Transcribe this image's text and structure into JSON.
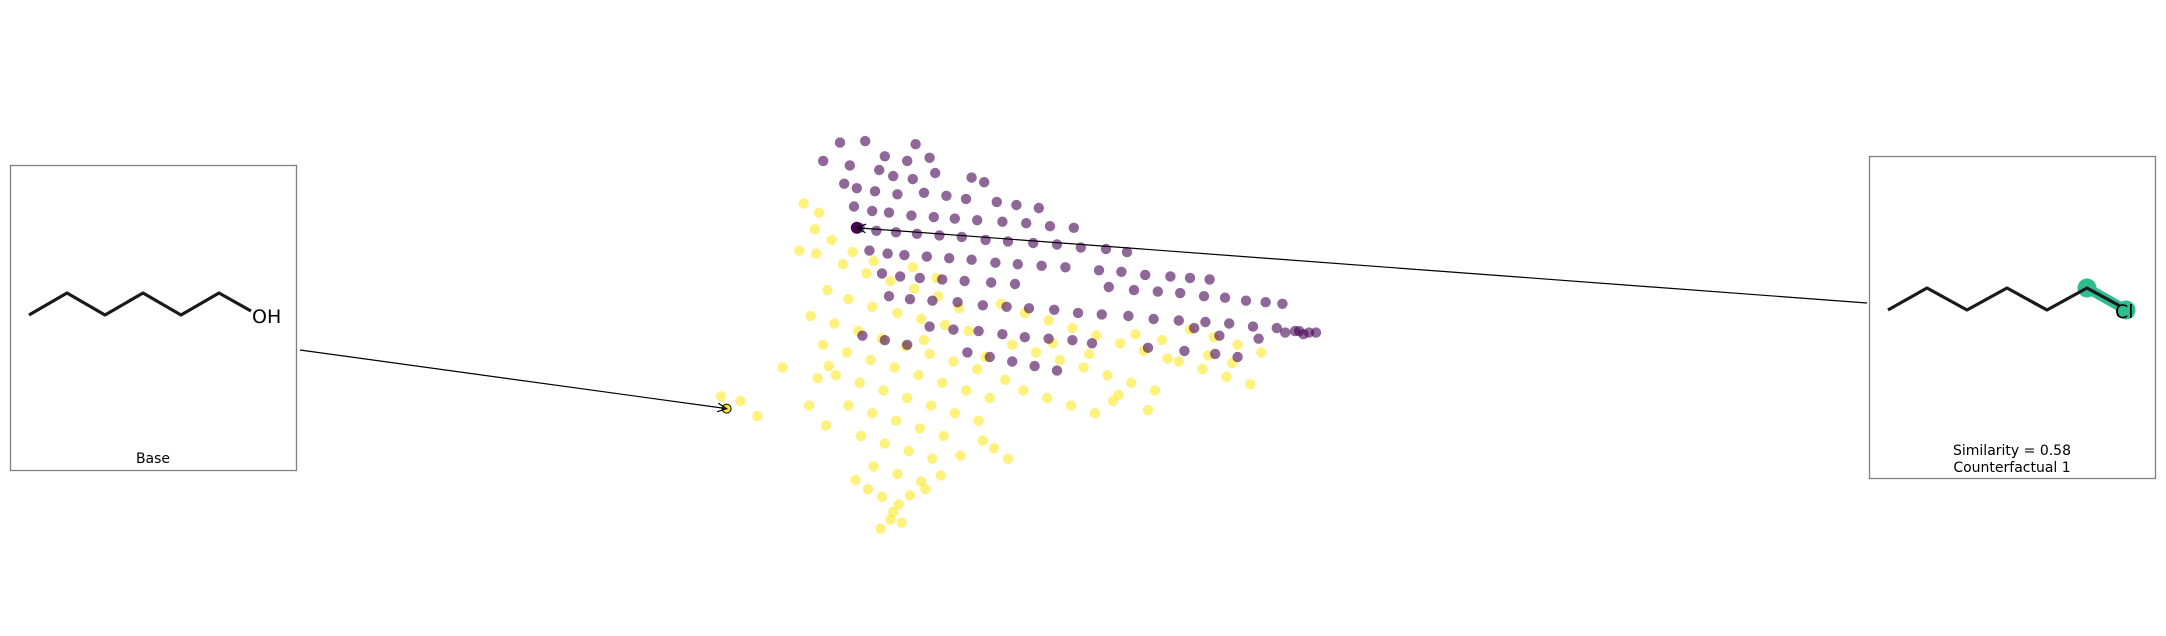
{
  "chart_data": {
    "type": "scatter",
    "title": "",
    "xlabel": "",
    "ylabel": "",
    "grid": false,
    "axes_visible": false,
    "color_map": {
      "0": "#440154",
      "1": "#fde725"
    },
    "point_alpha": 0.6,
    "base": {
      "caption": "Base",
      "smiles_drawn": "CCCCCCO",
      "hetero_label": "OH",
      "point": [
        -8.1,
        -5.7
      ],
      "point_color": "#fde725"
    },
    "counterfactuals": [
      {
        "caption_similarity": "Similarity = 0.58",
        "caption_name": "Counterfactual 1",
        "smiles_drawn": "CCCCCCCl",
        "hetero_label": "Cl",
        "highlight_color": "#2ebd8f",
        "point": [
          1.2,
          6.2
        ],
        "point_color": "#440154"
      }
    ],
    "series": [
      {
        "name": "0",
        "color": "#440154",
        "points": [
          [
            0.0,
            11.8
          ],
          [
            1.8,
            11.9
          ],
          [
            5.4,
            11.7
          ],
          [
            -1.2,
            10.6
          ],
          [
            0.7,
            10.3
          ],
          [
            3.2,
            10.9
          ],
          [
            4.8,
            10.6
          ],
          [
            6.4,
            10.8
          ],
          [
            2.8,
            10.0
          ],
          [
            3.8,
            9.6
          ],
          [
            5.2,
            9.4
          ],
          [
            6.8,
            9.8
          ],
          [
            9.4,
            9.5
          ],
          [
            10.3,
            9.2
          ],
          [
            0.3,
            9.1
          ],
          [
            1.2,
            8.8
          ],
          [
            2.5,
            8.6
          ],
          [
            4.1,
            8.4
          ],
          [
            6.0,
            8.5
          ],
          [
            7.6,
            8.3
          ],
          [
            9.0,
            8.1
          ],
          [
            11.2,
            7.9
          ],
          [
            12.6,
            7.7
          ],
          [
            14.2,
            7.5
          ],
          [
            1.0,
            7.6
          ],
          [
            2.3,
            7.3
          ],
          [
            3.5,
            7.2
          ],
          [
            5.1,
            7.0
          ],
          [
            6.7,
            6.9
          ],
          [
            8.2,
            6.8
          ],
          [
            9.8,
            6.7
          ],
          [
            11.6,
            6.6
          ],
          [
            13.3,
            6.5
          ],
          [
            15.0,
            6.3
          ],
          [
            16.7,
            6.2
          ],
          [
            1.4,
            6.2
          ],
          [
            2.6,
            6.0
          ],
          [
            4.0,
            5.9
          ],
          [
            5.5,
            5.8
          ],
          [
            7.1,
            5.7
          ],
          [
            8.7,
            5.6
          ],
          [
            10.4,
            5.4
          ],
          [
            12.0,
            5.3
          ],
          [
            13.8,
            5.2
          ],
          [
            15.5,
            5.1
          ],
          [
            17.2,
            4.9
          ],
          [
            19.0,
            4.8
          ],
          [
            20.5,
            4.6
          ],
          [
            2.1,
            4.7
          ],
          [
            3.4,
            4.5
          ],
          [
            4.6,
            4.4
          ],
          [
            6.2,
            4.3
          ],
          [
            7.8,
            4.2
          ],
          [
            9.4,
            4.1
          ],
          [
            11.1,
            3.9
          ],
          [
            12.7,
            3.8
          ],
          [
            14.4,
            3.7
          ],
          [
            16.1,
            3.6
          ],
          [
            18.5,
            3.4
          ],
          [
            20.1,
            3.3
          ],
          [
            21.8,
            3.1
          ],
          [
            23.6,
            3.0
          ],
          [
            25.0,
            2.9
          ],
          [
            26.4,
            2.8
          ],
          [
            3.0,
            3.2
          ],
          [
            4.3,
            3.0
          ],
          [
            5.7,
            2.9
          ],
          [
            7.3,
            2.8
          ],
          [
            8.9,
            2.7
          ],
          [
            10.8,
            2.6
          ],
          [
            12.5,
            2.5
          ],
          [
            19.2,
            2.3
          ],
          [
            21.0,
            2.1
          ],
          [
            22.7,
            2.0
          ],
          [
            24.3,
            1.9
          ],
          [
            26.0,
            1.7
          ],
          [
            27.5,
            1.6
          ],
          [
            29.0,
            1.4
          ],
          [
            30.4,
            1.3
          ],
          [
            31.6,
            1.2
          ],
          [
            3.5,
            1.7
          ],
          [
            5.0,
            1.5
          ],
          [
            6.6,
            1.4
          ],
          [
            8.4,
            1.3
          ],
          [
            10.2,
            1.1
          ],
          [
            11.9,
            1.0
          ],
          [
            13.5,
            0.9
          ],
          [
            15.3,
            0.8
          ],
          [
            17.0,
            0.6
          ],
          [
            18.7,
            0.5
          ],
          [
            20.6,
            0.4
          ],
          [
            22.4,
            0.2
          ],
          [
            24.2,
            0.1
          ],
          [
            26.1,
            0.0
          ],
          [
            27.8,
            -0.1
          ],
          [
            29.5,
            -0.3
          ],
          [
            31.2,
            -0.4
          ],
          [
            32.8,
            -0.6
          ],
          [
            33.5,
            -0.7
          ],
          [
            34.0,
            -0.7
          ],
          [
            6.4,
            -0.3
          ],
          [
            8.1,
            -0.5
          ],
          [
            9.9,
            -0.6
          ],
          [
            11.6,
            -0.8
          ],
          [
            13.2,
            -1.0
          ],
          [
            14.9,
            -1.1
          ],
          [
            16.6,
            -1.2
          ],
          [
            18.0,
            -1.4
          ],
          [
            22.0,
            -1.7
          ],
          [
            24.6,
            -1.9
          ],
          [
            26.8,
            -2.1
          ],
          [
            28.4,
            -2.3
          ],
          [
            1.6,
            -0.9
          ],
          [
            3.2,
            -1.2
          ],
          [
            4.8,
            -1.5
          ],
          [
            9.1,
            -2.0
          ],
          [
            10.7,
            -2.3
          ],
          [
            12.3,
            -2.6
          ],
          [
            13.9,
            -2.9
          ],
          [
            15.5,
            -3.2
          ],
          [
            31.8,
            -0.7
          ],
          [
            32.5,
            -0.6
          ],
          [
            33.1,
            -0.8
          ],
          [
            25.3,
            -0.4
          ],
          [
            27.1,
            -0.9
          ],
          [
            29.9,
            -1.1
          ]
        ]
      },
      {
        "name": "1",
        "color": "#fde725",
        "points": [
          [
            -2.6,
            7.8
          ],
          [
            -1.5,
            7.2
          ],
          [
            -1.8,
            6.1
          ],
          [
            -0.6,
            5.4
          ],
          [
            0.9,
            4.6
          ],
          [
            2.4,
            4.0
          ],
          [
            -2.9,
            4.7
          ],
          [
            -1.7,
            4.5
          ],
          [
            0.2,
            3.8
          ],
          [
            1.9,
            3.2
          ],
          [
            3.6,
            2.7
          ],
          [
            5.3,
            2.2
          ],
          [
            7.0,
            1.7
          ],
          [
            -0.9,
            2.1
          ],
          [
            0.6,
            1.5
          ],
          [
            2.3,
            1.0
          ],
          [
            4.1,
            0.6
          ],
          [
            5.8,
            0.2
          ],
          [
            7.5,
            -0.2
          ],
          [
            9.2,
            -0.6
          ],
          [
            -2.1,
            0.4
          ],
          [
            -0.4,
            -0.1
          ],
          [
            1.3,
            -0.6
          ],
          [
            3.0,
            -1.1
          ],
          [
            4.7,
            -1.6
          ],
          [
            6.4,
            -2.1
          ],
          [
            8.1,
            -2.6
          ],
          [
            9.8,
            -3.1
          ],
          [
            -1.2,
            -1.5
          ],
          [
            0.5,
            -2.0
          ],
          [
            2.2,
            -2.5
          ],
          [
            3.9,
            -3.0
          ],
          [
            5.6,
            -3.5
          ],
          [
            7.3,
            -4.0
          ],
          [
            9.0,
            -4.5
          ],
          [
            10.7,
            -5.0
          ],
          [
            -0.3,
            -3.5
          ],
          [
            1.4,
            -4.0
          ],
          [
            3.1,
            -4.5
          ],
          [
            4.8,
            -5.0
          ],
          [
            6.5,
            -5.5
          ],
          [
            8.2,
            -6.0
          ],
          [
            9.9,
            -6.5
          ],
          [
            0.6,
            -5.5
          ],
          [
            2.3,
            -6.0
          ],
          [
            4.0,
            -6.5
          ],
          [
            5.7,
            -7.0
          ],
          [
            7.4,
            -7.5
          ],
          [
            1.5,
            -7.5
          ],
          [
            3.2,
            -8.0
          ],
          [
            4.9,
            -8.5
          ],
          [
            6.6,
            -9.0
          ],
          [
            2.4,
            -9.5
          ],
          [
            4.1,
            -10.0
          ],
          [
            5.8,
            -10.5
          ],
          [
            3.0,
            -11.5
          ],
          [
            4.2,
            -12.0
          ],
          [
            3.6,
            -13.0
          ],
          [
            2.9,
            -13.6
          ],
          [
            4.4,
            -13.2
          ],
          [
            11.5,
            1.2
          ],
          [
            13.2,
            0.6
          ],
          [
            14.9,
            0.1
          ],
          [
            16.6,
            -0.4
          ],
          [
            18.3,
            -0.9
          ],
          [
            20.0,
            -1.4
          ],
          [
            21.7,
            -1.9
          ],
          [
            23.4,
            -2.4
          ],
          [
            12.3,
            -1.5
          ],
          [
            14.0,
            -2.0
          ],
          [
            15.7,
            -2.5
          ],
          [
            17.4,
            -3.0
          ],
          [
            19.1,
            -3.5
          ],
          [
            20.8,
            -4.0
          ],
          [
            22.5,
            -4.5
          ],
          [
            13.1,
            -4.5
          ],
          [
            14.8,
            -5.0
          ],
          [
            16.5,
            -5.5
          ],
          [
            18.2,
            -6.0
          ],
          [
            19.9,
            -4.8
          ],
          [
            25.0,
            -0.5
          ],
          [
            26.7,
            -1.0
          ],
          [
            28.4,
            -1.5
          ],
          [
            30.1,
            -2.0
          ],
          [
            24.2,
            -2.6
          ],
          [
            25.9,
            -3.1
          ],
          [
            27.6,
            -3.6
          ],
          [
            29.3,
            -4.1
          ],
          [
            -8.5,
            -4.9
          ],
          [
            -5.9,
            -6.2
          ],
          [
            -4.1,
            -3.0
          ],
          [
            -2.2,
            -5.5
          ],
          [
            -1.0,
            -6.8
          ],
          [
            -7.1,
            -5.2
          ],
          [
            10.2,
            -7.8
          ],
          [
            11.0,
            -8.3
          ],
          [
            12.0,
            -9.0
          ],
          [
            3.8,
            -12.5
          ],
          [
            5.0,
            -11.4
          ],
          [
            6.1,
            -11.0
          ],
          [
            7.2,
            -10.1
          ],
          [
            1.1,
            -10.4
          ],
          [
            8.6,
            -8.8
          ],
          [
            2.0,
            -11.0
          ],
          [
            -1.6,
            -3.7
          ],
          [
            -0.8,
            -2.9
          ],
          [
            6.0,
            -1.2
          ],
          [
            8.5,
            0.9
          ],
          [
            10.4,
            -2.3
          ],
          [
            11.8,
            -3.8
          ],
          [
            15.2,
            -1.4
          ],
          [
            17.8,
            -2.1
          ],
          [
            21.1,
            -0.8
          ],
          [
            23.0,
            -1.2
          ],
          [
            26.3,
            -2.2
          ],
          [
            28.0,
            -2.7
          ],
          [
            19.5,
            -5.2
          ],
          [
            22.0,
            -5.8
          ],
          [
            5.2,
            3.6
          ],
          [
            6.9,
            2.9
          ]
        ]
      }
    ],
    "arrows": [
      {
        "from": "base_panel",
        "to": [
          -8.1,
          -5.7
        ]
      },
      {
        "from": "counterfactual_panel_1",
        "to": [
          1.2,
          6.2
        ]
      }
    ]
  }
}
